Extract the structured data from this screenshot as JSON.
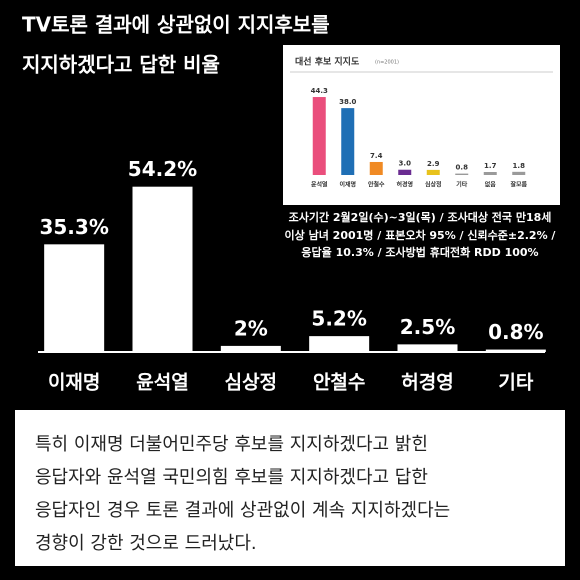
{
  "chart_data": [
    {
      "type": "bar",
      "title": [
        "TV토론 결과에 상관없이 지지후보를",
        "지지하겠다고 답한 비율"
      ],
      "categories": [
        "이재명",
        "윤석열",
        "심상정",
        "안철수",
        "허경영",
        "기타"
      ],
      "values": [
        35.3,
        54.2,
        2,
        5.2,
        2.5,
        0.8
      ],
      "value_labels": [
        "35.3%",
        "54.2%",
        "2%",
        "5.2%",
        "2.5%",
        "0.8%"
      ],
      "color": "#ffffff",
      "ylim": [
        0,
        60
      ]
    },
    {
      "type": "bar",
      "title": "대선 후보 지지도",
      "subtitle": "(n=2001)",
      "categories": [
        "윤석열",
        "이재명",
        "안철수",
        "허경영",
        "심상정",
        "기타",
        "없음",
        "잘모름"
      ],
      "values": [
        44.3,
        38.0,
        7.4,
        3.0,
        2.9,
        0.8,
        1.7,
        1.8
      ],
      "value_labels": [
        "44.3",
        "38.0",
        "7.4",
        "3.0",
        "2.9",
        "0.8",
        "1.7",
        "1.8"
      ],
      "colors": [
        "#ea4e7c",
        "#1f6fb5",
        "#f08a24",
        "#6a2c91",
        "#e8c21c",
        "#9a9a9a",
        "#9a9a9a",
        "#9a9a9a"
      ],
      "ylim": [
        0,
        50
      ]
    }
  ],
  "caption": [
    "조사기간 2월2일(수)~3일(목) / 조사대상  전국 만18세",
    "이상 남녀 2001명 / 표본오차 95% / 신뢰수준±2.2% /",
    "응답율 10.3% / 조사방법 휴대전화 RDD 100%"
  ],
  "body": [
    "특히 이재명 더불어민주당 후보를 지지하겠다고 밝힌",
    "응답자와 윤석열 국민의힘 후보를 지지하겠다고 답한",
    "응답자인 경우 토론 결과에 상관없이 계속 지지하겠다는",
    "경향이 강한 것으로 드러났다."
  ]
}
